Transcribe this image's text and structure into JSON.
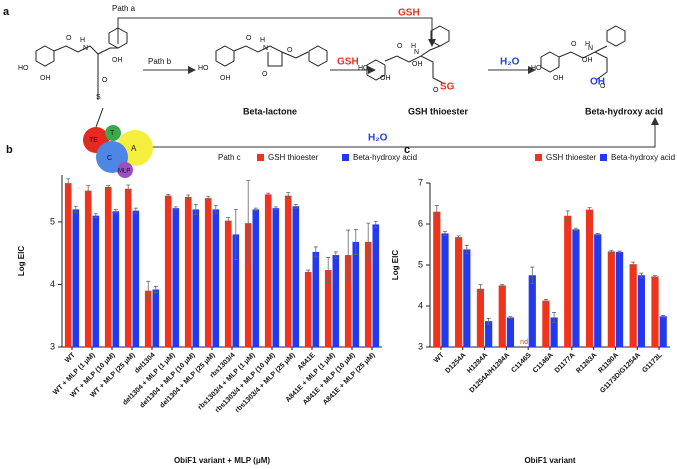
{
  "scheme": {
    "labels": [
      "a",
      "Path a",
      "GSH",
      "Path b",
      "GSH",
      "H₂O",
      "Beta-lactone",
      "GSH thioester",
      "Beta-hydroxy acid",
      "Path c",
      "H₂O",
      "TE",
      "T",
      "A",
      "C",
      "MLP",
      "SG",
      "OH"
    ],
    "atoms": [
      "HO",
      "OH",
      "O",
      "H",
      "N",
      "OH",
      "O",
      "S",
      "HO",
      "OH",
      "O",
      "H",
      "N",
      "O",
      "O",
      "HO",
      "OH",
      "O",
      "H",
      "N",
      "OH",
      "O",
      "HO",
      "OH",
      "O",
      "H",
      "N",
      "OH",
      "O"
    ]
  },
  "chart_data": [
    {
      "type": "bar",
      "panel": "b",
      "ylabel": "Log EIC",
      "xlabel": "ObiF1 variant + MLP (μM)",
      "categories": [
        "WT",
        "WT + MLP (1 μM)",
        "WT + MLP (10 μM)",
        "WT + MLP (25 μM)",
        "del1304",
        "del1304 + MLP (1 μM)",
        "del1304 + MLP (10 μM)",
        "del1304 + MLP (25 μM)",
        "rbs1303/4",
        "rbs1303/4 + MLP (1 μM)",
        "rbs1303/4 + MLP (10 μM)",
        "rbs1303/4 + MLP (25 μM)",
        "A841E",
        "A841E + MLP (1 μM)",
        "A841E + MLP (10 μM)",
        "A841E + MLP (25 μM)"
      ],
      "series": [
        {
          "name": "GSH thioester",
          "color": "#f0341c",
          "values": [
            5.62,
            5.5,
            5.56,
            5.53,
            3.9,
            5.42,
            5.4,
            5.38,
            5.02,
            4.98,
            5.44,
            5.42,
            4.2,
            4.23,
            4.47,
            4.68
          ],
          "errors": [
            0.07,
            0.08,
            0.02,
            0.06,
            0.15,
            0.02,
            0.03,
            0.03,
            0.05,
            0.68,
            0.02,
            0.05,
            0.03,
            0.2,
            0.4,
            0.3
          ]
        },
        {
          "name": "Beta-hydroxy acid",
          "color": "#2339ee",
          "values": [
            5.2,
            5.1,
            5.17,
            5.18,
            3.92,
            5.22,
            5.2,
            5.2,
            4.8,
            5.2,
            5.22,
            5.25,
            4.52,
            4.47,
            4.68,
            4.96
          ],
          "errors": [
            0.05,
            0.03,
            0.03,
            0.04,
            0.05,
            0.02,
            0.08,
            0.06,
            0.4,
            0.02,
            0.02,
            0.03,
            0.08,
            0.05,
            0.2,
            0.05
          ]
        }
      ],
      "ylim": [
        3,
        5.75
      ],
      "yticks": [
        3,
        4,
        5
      ]
    },
    {
      "type": "bar",
      "panel": "c",
      "ylabel": "Log EIC",
      "xlabel": "ObiF1 variant",
      "categories": [
        "WT",
        "D1254A",
        "H1284A",
        "D1254A/H1284A",
        "C1146S",
        "C1146A",
        "D1177A",
        "R1263A",
        "R1190A",
        "G1173D/G1254A",
        "G1173L"
      ],
      "series": [
        {
          "name": "GSH thioester",
          "color": "#f0341c",
          "values": [
            6.3,
            5.68,
            4.42,
            4.5,
            null,
            4.13,
            6.2,
            6.35,
            5.33,
            5.02,
            4.72
          ],
          "value_labels": [
            null,
            null,
            null,
            null,
            "nd",
            null,
            null,
            null,
            null,
            null,
            null
          ],
          "errors": [
            0.15,
            0.03,
            0.1,
            0.02,
            null,
            0.03,
            0.12,
            0.05,
            0.03,
            0.05,
            0.02
          ]
        },
        {
          "name": "Beta-hydroxy acid",
          "color": "#2339ee",
          "values": [
            5.77,
            5.38,
            3.63,
            3.72,
            4.75,
            3.72,
            5.87,
            5.75,
            5.32,
            4.75,
            3.75
          ],
          "errors": [
            0.05,
            0.1,
            0.07,
            0.02,
            0.2,
            0.12,
            0.03,
            0.02,
            0.02,
            0.05,
            0.02
          ]
        }
      ],
      "ylim": [
        3,
        7
      ],
      "yticks": [
        3,
        4,
        5,
        6,
        7
      ]
    }
  ]
}
